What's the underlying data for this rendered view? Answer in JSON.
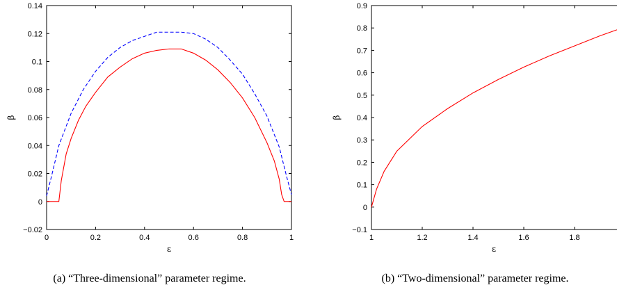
{
  "figure": {
    "colors": {
      "red": "#ff0000",
      "blue": "#0000ff",
      "axis": "#000000"
    }
  },
  "chart_data": [
    {
      "type": "line",
      "caption": "(a) “Three-dimensional” parameter regime.",
      "xlabel": "ε",
      "ylabel": "β",
      "xlim": [
        0,
        1
      ],
      "ylim": [
        -0.02,
        0.14
      ],
      "xticks": [
        0,
        0.2,
        0.4,
        0.6,
        0.8,
        1
      ],
      "xtick_labels": [
        "0",
        "0.2",
        "0.4",
        "0.6",
        "0.8",
        "1"
      ],
      "yticks": [
        -0.02,
        0,
        0.02,
        0.04,
        0.06,
        0.08,
        0.1,
        0.12,
        0.14
      ],
      "ytick_labels": [
        "−0.02",
        "0",
        "0.02",
        "0.04",
        "0.06",
        "0.08",
        "0.1",
        "0.12",
        "0.14"
      ],
      "grid": false,
      "series": [
        {
          "color": "#0000ff",
          "style": "dashed",
          "x": [
            0,
            0.02,
            0.05,
            0.1,
            0.15,
            0.2,
            0.25,
            0.3,
            0.35,
            0.4,
            0.45,
            0.5,
            0.55,
            0.6,
            0.65,
            0.7,
            0.75,
            0.8,
            0.85,
            0.9,
            0.95,
            0.98,
            1
          ],
          "y": [
            0.004,
            0.018,
            0.04,
            0.063,
            0.08,
            0.093,
            0.103,
            0.11,
            0.115,
            0.118,
            0.121,
            0.121,
            0.121,
            0.12,
            0.116,
            0.11,
            0.101,
            0.091,
            0.077,
            0.061,
            0.039,
            0.018,
            0.005
          ]
        },
        {
          "color": "#ff0000",
          "style": "solid",
          "x": [
            0,
            0.05,
            0.06,
            0.08,
            0.1,
            0.13,
            0.16,
            0.2,
            0.25,
            0.3,
            0.35,
            0.4,
            0.45,
            0.5,
            0.55,
            0.6,
            0.65,
            0.7,
            0.75,
            0.8,
            0.85,
            0.9,
            0.93,
            0.95,
            0.96,
            0.97,
            1
          ],
          "y": [
            0,
            0,
            0.015,
            0.034,
            0.045,
            0.058,
            0.068,
            0.078,
            0.089,
            0.096,
            0.102,
            0.106,
            0.108,
            0.109,
            0.109,
            0.106,
            0.101,
            0.094,
            0.085,
            0.074,
            0.06,
            0.042,
            0.029,
            0.016,
            0.005,
            0,
            0
          ]
        }
      ]
    },
    {
      "type": "line",
      "caption": "(b) “Two-dimensional” parameter regime.",
      "xlabel": "ε",
      "ylabel": "β",
      "xlim": [
        1,
        2
      ],
      "ylim": [
        -0.1,
        0.9
      ],
      "xticks": [
        1,
        1.2,
        1.4,
        1.6,
        1.8,
        2
      ],
      "xtick_labels": [
        "1",
        "1.2",
        "1.4",
        "1.6",
        "1.8",
        "2"
      ],
      "yticks": [
        -0.1,
        0,
        0.1,
        0.2,
        0.3,
        0.4,
        0.5,
        0.6,
        0.7,
        0.8,
        0.9
      ],
      "ytick_labels": [
        "−0.1",
        "0",
        "0.1",
        "0.2",
        "0.3",
        "0.4",
        "0.5",
        "0.6",
        "0.7",
        "0.8",
        "0.9"
      ],
      "grid": false,
      "series": [
        {
          "color": "#ff0000",
          "style": "solid",
          "x": [
            1,
            1.01,
            1.02,
            1.05,
            1.1,
            1.2,
            1.3,
            1.4,
            1.5,
            1.6,
            1.7,
            1.8,
            1.9,
            2
          ],
          "y": [
            0,
            0.04,
            0.08,
            0.16,
            0.25,
            0.36,
            0.44,
            0.51,
            0.57,
            0.625,
            0.675,
            0.72,
            0.765,
            0.805
          ]
        }
      ]
    }
  ]
}
